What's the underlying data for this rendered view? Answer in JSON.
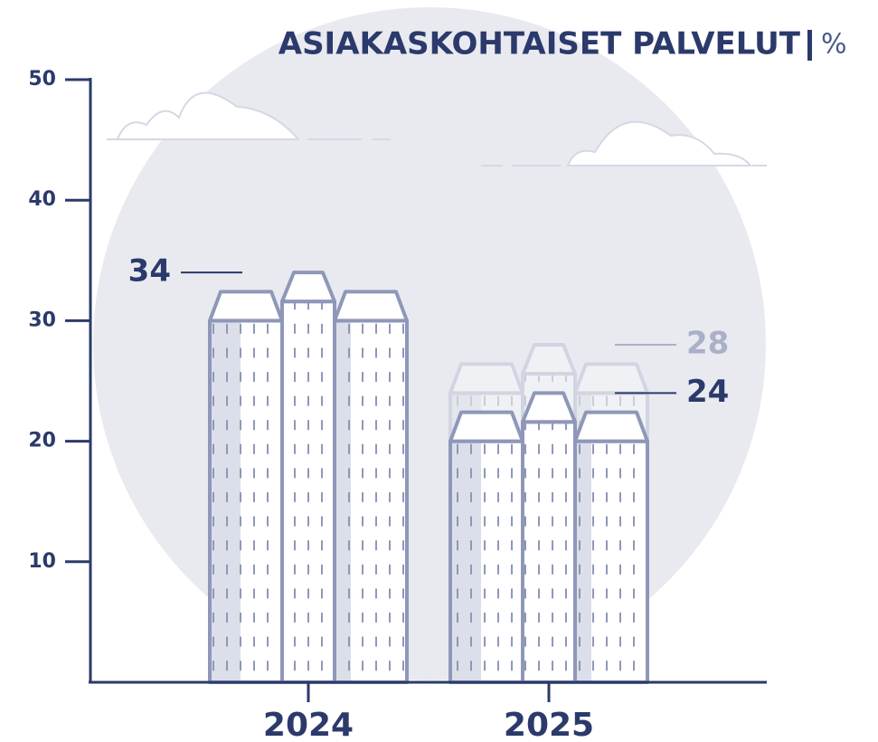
{
  "chart_data": {
    "type": "building-bar",
    "title": "ASIAKASKOHTAISET PALVELUT",
    "y_unit": "%",
    "categories": [
      "2024",
      "2025"
    ],
    "series": [
      {
        "color": "#8f97b9",
        "values": [
          34,
          24
        ]
      },
      {
        "color": "#aab0c8",
        "values": [
          null,
          28
        ]
      }
    ],
    "ylim": [
      0,
      50
    ],
    "yticks": [
      10,
      20,
      30,
      40,
      50
    ]
  }
}
